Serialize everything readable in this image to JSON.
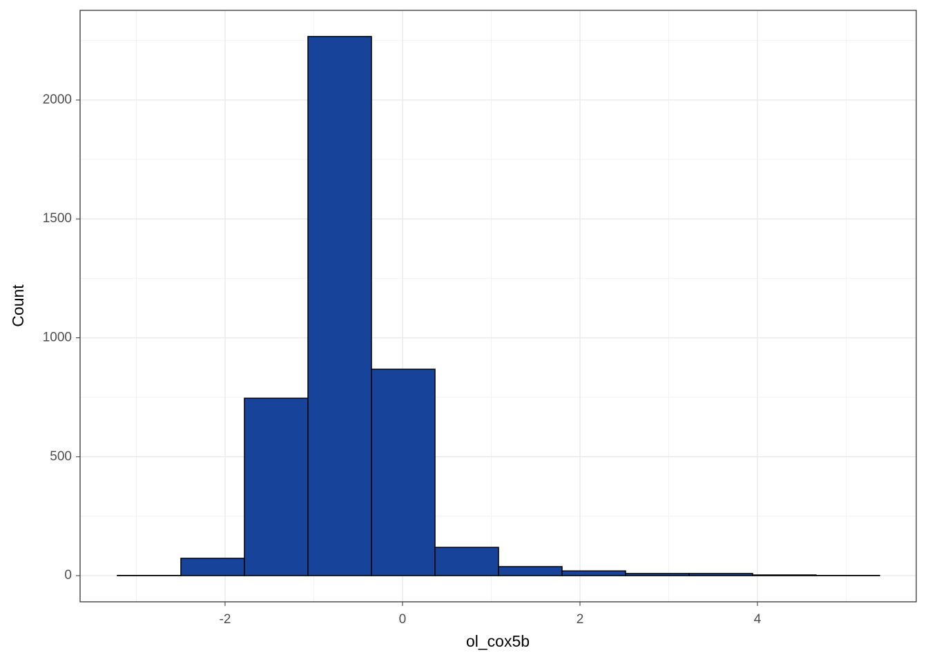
{
  "chart_data": {
    "type": "histogram",
    "x_label": "ol_cox5b",
    "y_label": "Count",
    "bins": [
      -3.214,
      -2.498,
      -1.782,
      -1.066,
      -0.35,
      0.366,
      1.082,
      1.798,
      2.514,
      3.23,
      3.946,
      4.661,
      5.377
    ],
    "counts": [
      1,
      73,
      746,
      2267,
      868,
      119,
      38,
      20,
      9,
      9,
      3,
      1
    ],
    "color": "#18439a",
    "edgecolor": "#000000",
    "xlim": [
      -3.634,
      5.79
    ],
    "ylim": [
      -110,
      2377
    ],
    "xticks": [
      -2,
      0,
      2,
      4
    ],
    "yticks": [
      0,
      500,
      1000,
      1500,
      2000
    ],
    "xminor": [
      -3,
      -1,
      1,
      3,
      5
    ],
    "yminor": [
      250,
      750,
      1250,
      1750,
      2250
    ],
    "grid": true
  }
}
